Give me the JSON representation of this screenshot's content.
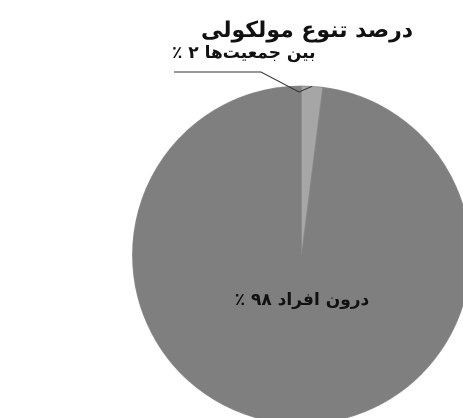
{
  "chart_data": {
    "type": "pie",
    "title": "درصد تنوع مولکولی",
    "slices": [
      {
        "label": "درون افراد ۹۸ ٪",
        "value": 98,
        "color": "#7f7f7f"
      },
      {
        "label": "بین جمعیت‌ها ۲ ٪",
        "value": 2,
        "color": "#a6a6a6"
      }
    ]
  }
}
